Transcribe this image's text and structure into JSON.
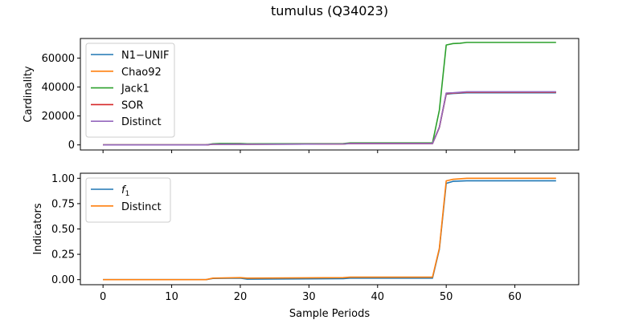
{
  "figure": {
    "title": "tumulus (Q34023)"
  },
  "chart_data": [
    {
      "type": "line",
      "xlabel": "",
      "ylabel": "Cardinality",
      "xlim": [
        -3.3,
        69.3
      ],
      "ylim": [
        -3500,
        73500
      ],
      "xticks": [
        0,
        10,
        20,
        30,
        40,
        50,
        60
      ],
      "yticks": [
        0,
        20000,
        40000,
        60000
      ],
      "ytick_labels": [
        "0",
        "20000",
        "40000",
        "60000"
      ],
      "show_xtick_labels": false,
      "legend_position": "upper-left",
      "series": [
        {
          "name": "N1−UNIF",
          "color": "#1f77b4",
          "x": [
            0,
            15,
            16,
            20,
            21,
            35,
            36,
            48,
            49,
            50,
            51,
            53,
            66
          ],
          "y": [
            0,
            0,
            400,
            500,
            400,
            600,
            900,
            900,
            12000,
            35000,
            35500,
            36000,
            36000
          ]
        },
        {
          "name": "Chao92",
          "color": "#ff7f0e",
          "x": [
            0,
            15,
            16,
            20,
            21,
            35,
            36,
            48,
            49,
            50,
            51,
            53,
            66
          ],
          "y": [
            0,
            0,
            450,
            550,
            450,
            650,
            950,
            950,
            12200,
            35400,
            35800,
            36400,
            36400
          ]
        },
        {
          "name": "Jack1",
          "color": "#2ca02c",
          "x": [
            0,
            15,
            16,
            17,
            20,
            21,
            35,
            36,
            48,
            49,
            50,
            51,
            52,
            53,
            66
          ],
          "y": [
            0,
            0,
            800,
            1000,
            1000,
            800,
            900,
            1400,
            1400,
            24000,
            69000,
            70000,
            70200,
            70800,
            70800
          ]
        },
        {
          "name": "SOR",
          "color": "#d62728",
          "x": [
            0,
            15,
            16,
            20,
            21,
            35,
            36,
            48,
            49,
            50,
            51,
            53,
            66
          ],
          "y": [
            0,
            0,
            450,
            550,
            450,
            650,
            950,
            950,
            12200,
            35500,
            35800,
            36400,
            36400
          ]
        },
        {
          "name": "Distinct",
          "color": "#9467bd",
          "x": [
            0,
            15,
            16,
            20,
            21,
            35,
            36,
            48,
            49,
            50,
            51,
            53,
            66
          ],
          "y": [
            0,
            0,
            450,
            550,
            450,
            650,
            950,
            950,
            12300,
            35800,
            36000,
            36700,
            36700
          ]
        }
      ]
    },
    {
      "type": "line",
      "xlabel": "Sample Periods",
      "ylabel": "Indicators",
      "xlim": [
        -3.3,
        69.3
      ],
      "ylim": [
        -0.05,
        1.05
      ],
      "xticks": [
        0,
        10,
        20,
        30,
        40,
        50,
        60
      ],
      "xtick_labels": [
        "0",
        "10",
        "20",
        "30",
        "40",
        "50",
        "60"
      ],
      "yticks": [
        0,
        0.25,
        0.5,
        0.75,
        1.0
      ],
      "ytick_labels": [
        "0.00",
        "0.25",
        "0.50",
        "0.75",
        "1.00"
      ],
      "show_xtick_labels": true,
      "legend_position": "upper-left",
      "series": [
        {
          "name": "f1",
          "label_main": "f",
          "label_sub": "1",
          "color": "#1f77b4",
          "x": [
            0,
            15,
            16,
            20,
            21,
            35,
            36,
            48,
            49,
            50,
            51,
            53,
            66
          ],
          "y": [
            0,
            0,
            0.012,
            0.015,
            0.005,
            0.01,
            0.015,
            0.015,
            0.3,
            0.95,
            0.97,
            0.975,
            0.975
          ]
        },
        {
          "name": "Distinct",
          "color": "#ff7f0e",
          "x": [
            0,
            15,
            16,
            20,
            21,
            35,
            36,
            48,
            49,
            50,
            51,
            53,
            66
          ],
          "y": [
            0,
            0,
            0.015,
            0.02,
            0.015,
            0.02,
            0.025,
            0.025,
            0.31,
            0.975,
            0.99,
            1.0,
            1.0
          ]
        }
      ]
    }
  ]
}
